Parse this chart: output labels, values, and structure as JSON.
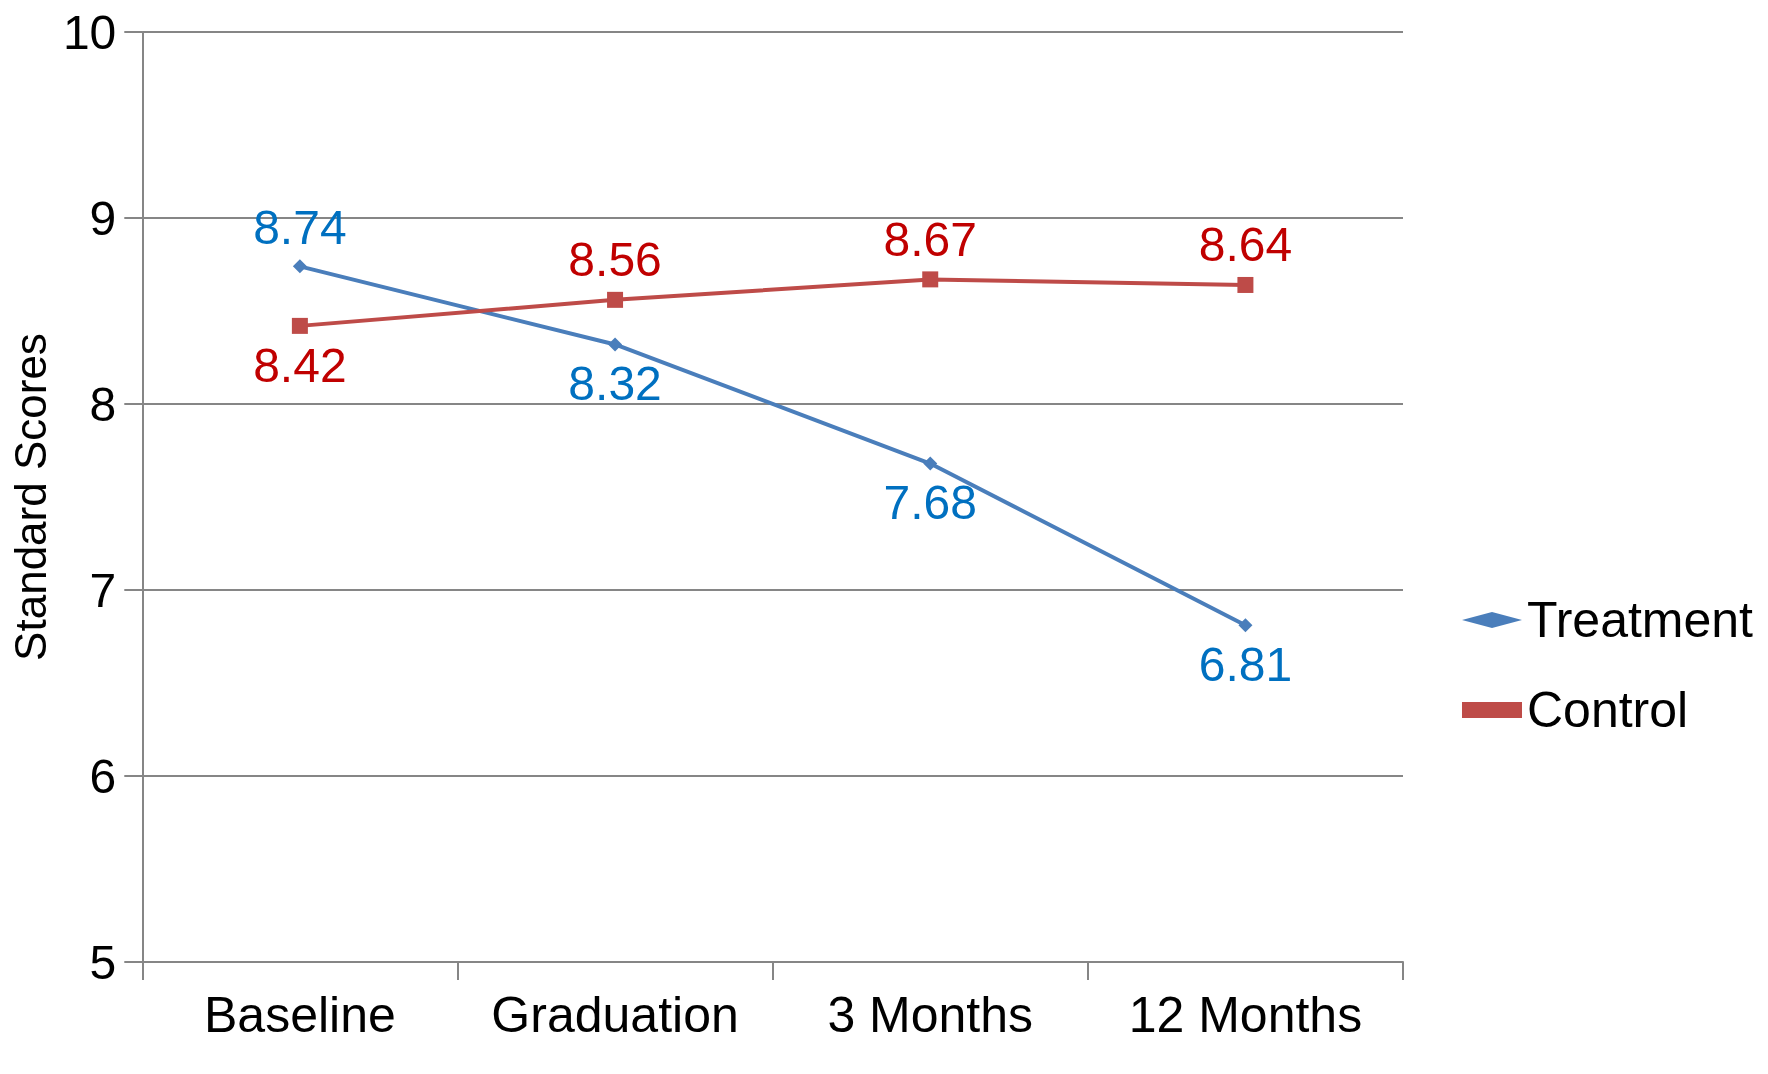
{
  "chart_data": {
    "type": "line",
    "ylabel": "Standard Scores",
    "categories": [
      "Baseline",
      "Graduation",
      "3 Months",
      "12 Months"
    ],
    "series": [
      {
        "name": "Treatment",
        "color": "#4a7ebb",
        "marker": "diamond",
        "values": [
          8.74,
          8.32,
          7.68,
          6.81
        ]
      },
      {
        "name": "Control",
        "color": "#be4b48",
        "marker": "square",
        "values": [
          8.42,
          8.56,
          8.67,
          8.64
        ]
      }
    ],
    "ylim": [
      5,
      10
    ],
    "yticks": [
      5,
      6,
      7,
      8,
      9,
      10
    ],
    "grid": "y",
    "legend": "right",
    "data_labels": true
  }
}
